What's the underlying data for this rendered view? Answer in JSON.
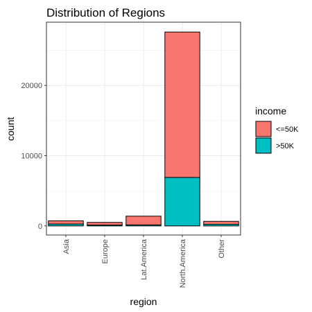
{
  "chart_data": {
    "type": "bar",
    "stacked": true,
    "title": "Distribution of Regions",
    "xlabel": "region",
    "ylabel": "count",
    "categories": [
      "Asia",
      "Europe",
      "Lat.America",
      "North.America",
      "Other"
    ],
    "series": [
      {
        "name": "<=50K",
        "color": "#F8766D",
        "values": [
          450,
          380,
          1250,
          20700,
          420
        ]
      },
      {
        "name": ">50K",
        "color": "#00BFC4",
        "values": [
          270,
          120,
          140,
          6900,
          230
        ]
      }
    ],
    "ylim": [
      -1300,
      29000
    ],
    "yticks": [
      0,
      10000,
      20000
    ],
    "ytick_labels": [
      "0",
      "10000",
      "20000"
    ],
    "grid": true,
    "legend": {
      "title": "income",
      "position": "right"
    }
  }
}
